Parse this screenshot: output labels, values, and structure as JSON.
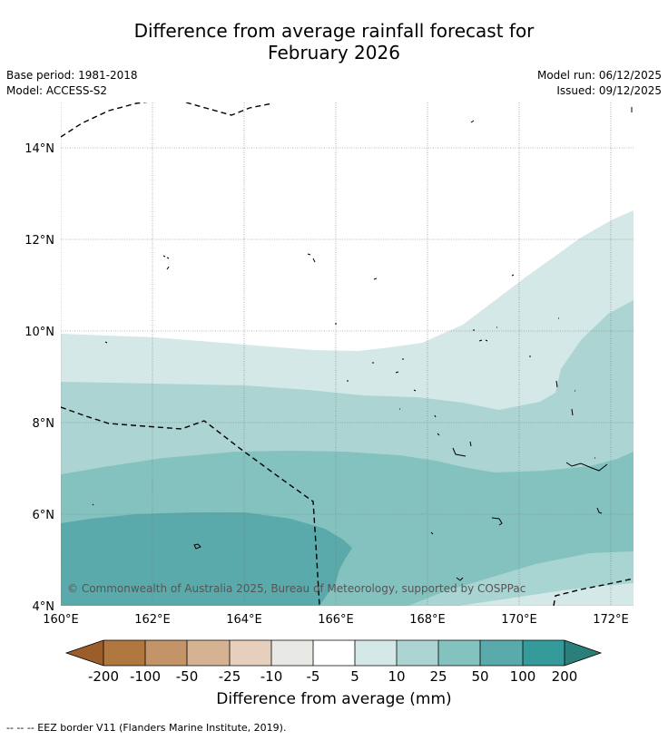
{
  "header": {
    "title_line1": "Difference from average rainfall forecast for",
    "title_line2": "February 2026",
    "base_period": "Base period: 1981-2018",
    "model": "Model: ACCESS-S2",
    "model_run": "Model run: 06/12/2025",
    "issued": "Issued: 09/12/2025"
  },
  "map": {
    "lon_range": [
      160,
      172.5
    ],
    "lat_range": [
      4,
      15
    ],
    "lon_ticks": [
      "160°E",
      "162°E",
      "164°E",
      "166°E",
      "168°E",
      "170°E",
      "172°E"
    ],
    "lat_ticks": [
      "4°N",
      "6°N",
      "8°N",
      "10°N",
      "12°N",
      "14°N"
    ],
    "copyright": "© Commonwealth of Australia 2025, Bureau of Meteorology, supported by COSPPac"
  },
  "colorbar": {
    "label": "Difference from average (mm)",
    "ticks": [
      "-200",
      "-100",
      "-50",
      "-25",
      "-10",
      "-5",
      "5",
      "10",
      "25",
      "50",
      "100",
      "200"
    ],
    "colors": {
      "lt_neg200": "#9b5d2a",
      "neg200_neg100": "#b07840",
      "neg100_neg50": "#c29468",
      "neg50_neg25": "#d4b292",
      "neg25_neg10": "#e6cfbd",
      "neg10_neg5": "#e8e8e4",
      "neg5_5": "#ffffff",
      "5_10": "#d3e8e7",
      "10_25": "#acd4d3",
      "25_50": "#84c2c0",
      "50_100": "#5aaaab",
      "100_200": "#349b9a",
      "gt_200": "#2a7f7b"
    }
  },
  "footnote": "--  --  -- EEZ border V11 (Flanders Marine Institute, 2019)."
}
